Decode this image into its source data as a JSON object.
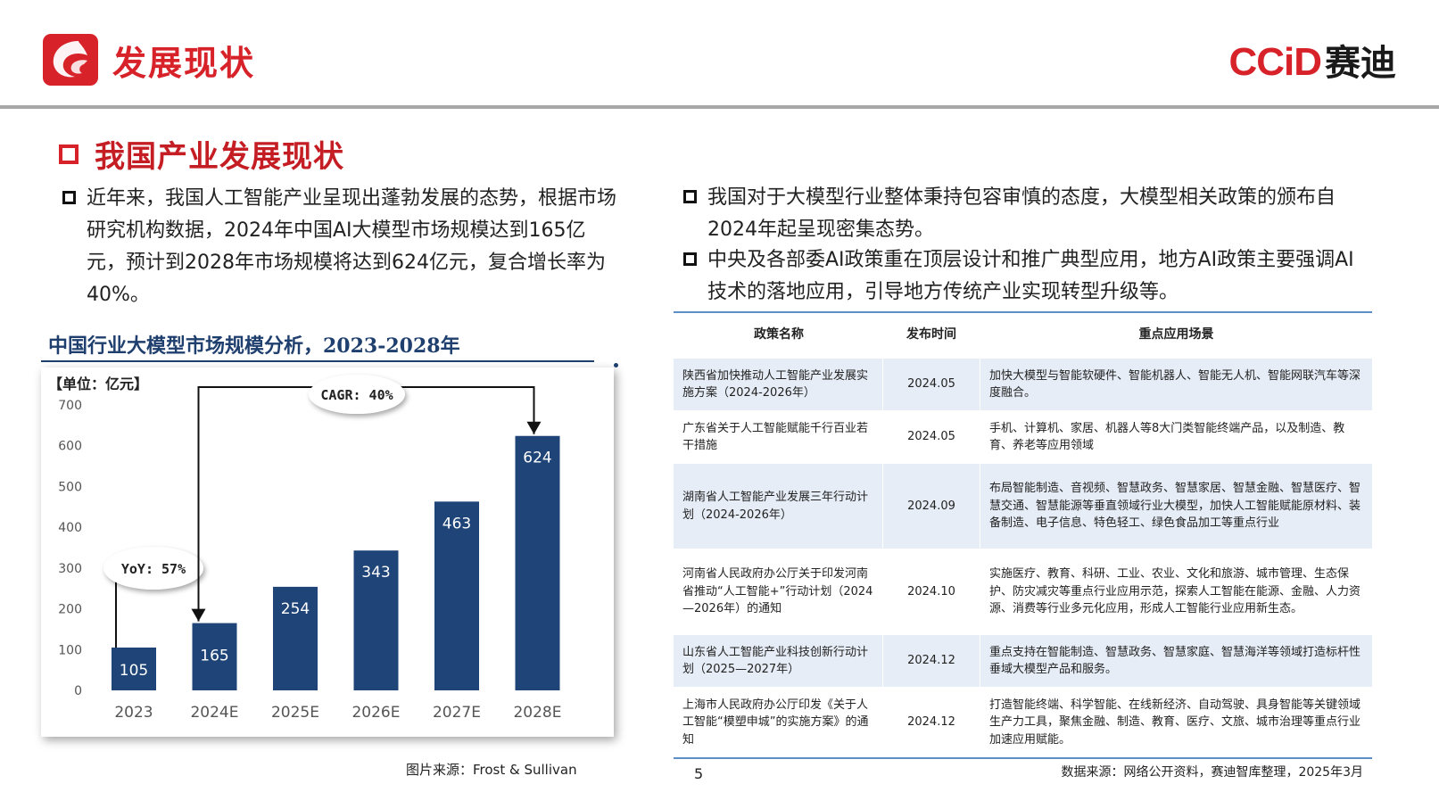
{
  "header": {
    "title": "发展现状",
    "brand_latin": "CCiD",
    "brand_cn": "赛迪"
  },
  "section_title": "我国产业发展现状",
  "left_bullet": "近年来，我国人工智能产业呈现出蓬勃发展的态势，根据市场研究机构数据，2024年中国AI大模型市场规模达到165亿元，预计到2028年市场规模将达到624亿元，复合增长率为40%。",
  "right_bullets": [
    "我国对于大模型行业整体秉持包容审慎的态度，大模型相关政策的颁布自2024年起呈现密集态势。",
    "中央及各部委AI政策重在顶层设计和推广典型应用，地方AI政策主要强调AI技术的落地应用，引导地方传统产业实现转型升级等。"
  ],
  "chart_data": {
    "type": "bar",
    "title": "中国行业大模型市场规模分析，2023-2028年",
    "unit_label": "【单位：亿元】",
    "categories": [
      "2023",
      "2024E",
      "2025E",
      "2026E",
      "2027E",
      "2028E"
    ],
    "values": [
      105,
      165,
      254,
      343,
      463,
      624
    ],
    "ylim": [
      0,
      700
    ],
    "yticks": [
      0,
      100,
      200,
      300,
      400,
      500,
      600,
      700
    ],
    "grid": false,
    "bar_color": "#1f4478",
    "annotations": [
      {
        "text": "YoY: 57%",
        "from": "2023",
        "to": "2024E"
      },
      {
        "text": "CAGR: 40%",
        "from": "2024E",
        "to": "2028E"
      }
    ]
  },
  "chart_source": "图片来源：Frost & Sullivan",
  "table": {
    "headers": [
      "政策名称",
      "发布时间",
      "重点应用场景"
    ],
    "rows": [
      {
        "name": "陕西省加快推动人工智能产业发展实施方案（2024-2026年）",
        "date": "2024.05",
        "scene": "加快大模型与智能软硬件、智能机器人、智能无人机、智能网联汽车等深度融合。"
      },
      {
        "name": "广东省关于人工智能赋能千行百业若干措施",
        "date": "2024.05",
        "scene": "手机、计算机、家居、机器人等8大门类智能终端产品，以及制造、教育、养老等应用领域"
      },
      {
        "name": "湖南省人工智能产业发展三年行动计划（2024-2026年）",
        "date": "2024.09",
        "scene": "布局智能制造、音视频、智慧政务、智慧家居、智慧金融、智慧医疗、智慧交通、智慧能源等垂直领域行业大模型，加快人工智能赋能原材料、装备制造、电子信息、特色轻工、绿色食品加工等重点行业"
      },
      {
        "name": "河南省人民政府办公厅关于印发河南省推动“人工智能+”行动计划（2024—2026年）的通知",
        "date": "2024.10",
        "scene": "实施医疗、教育、科研、工业、农业、文化和旅游、城市管理、生态保护、防灾减灾等重点行业应用示范，探索人工智能在能源、金融、人力资源、消费等行业多元化应用，形成人工智能行业应用新生态。"
      },
      {
        "name": "山东省人工智能产业科技创新行动计划（2025—2027年）",
        "date": "2024.12",
        "scene": "重点支持在智能制造、智慧政务、智慧家庭、智慧海洋等领域打造标杆性垂域大模型产品和服务。"
      },
      {
        "name": "上海市人民政府办公厅印发《关于人工智能“模塑申城”的实施方案》的通知",
        "date": "2024.12",
        "scene": "打造智能终端、科学智能、在线新经济、自动驾驶、具身智能等关键领域生产力工具，聚焦金融、制造、教育、医疗、文旅、城市治理等重点行业加速应用赋能。"
      }
    ]
  },
  "page_number": "5",
  "data_source": "数据来源：网络公开资料，赛迪智库整理，2025年3月",
  "colors": {
    "accent": "#d8222a",
    "navy": "#1f4478",
    "table_border": "#5b8fc9",
    "table_stripe": "#e6edf6"
  }
}
